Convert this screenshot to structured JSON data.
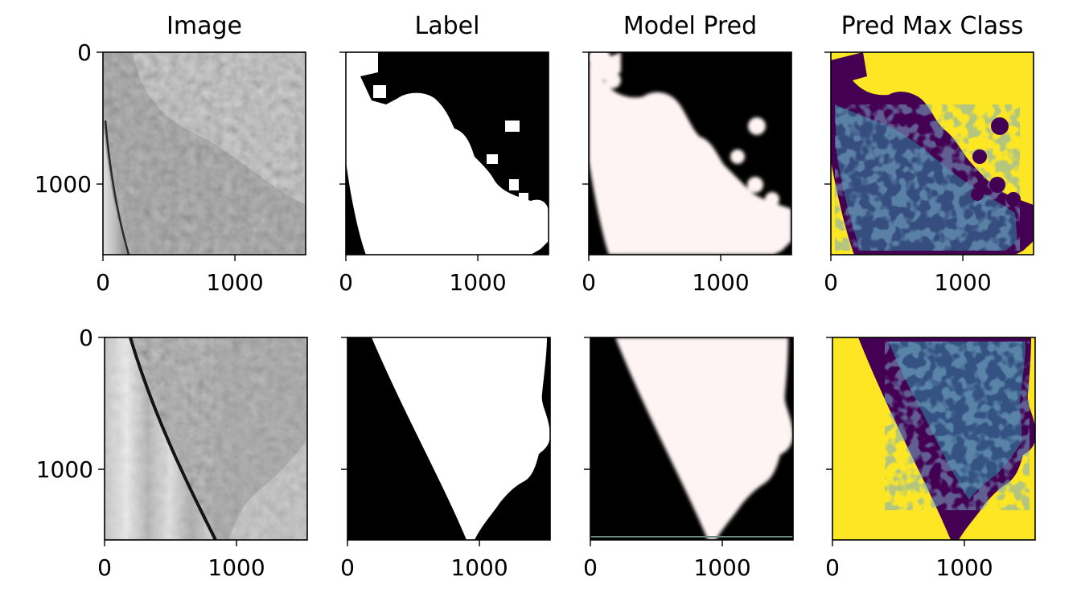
{
  "chart_data": {
    "type": "image-grid",
    "columns": [
      "Image",
      "Label",
      "Model Pred",
      "Pred Max Class"
    ],
    "rows": 2,
    "image_extent": {
      "x": [
        0,
        1536
      ],
      "y": [
        0,
        1536
      ]
    },
    "x_ticks": [
      0,
      1000
    ],
    "y_ticks": [
      0,
      1000
    ],
    "x_tick_labels": [
      "0",
      "1000"
    ],
    "y_tick_labels": [
      "0",
      "1000"
    ],
    "colormaps": {
      "Image": "gray",
      "Label": "gray",
      "Model Pred": "gray",
      "Pred Max Class": "viridis"
    },
    "colors": {
      "viridis_low": "#440154",
      "viridis_mid": "#31688e",
      "viridis_high": "#fde725",
      "mask_on": "#ffffff",
      "mask_off": "#000000"
    }
  }
}
